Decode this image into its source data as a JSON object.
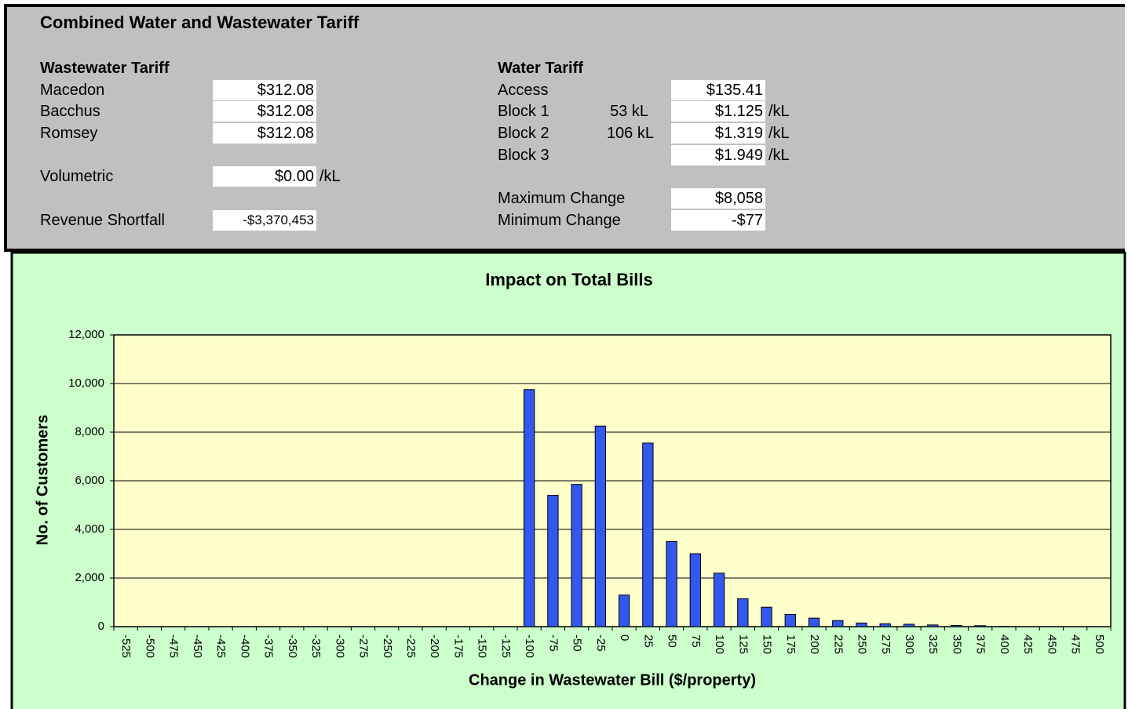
{
  "panel": {
    "title": "Combined Water and Wastewater Tariff",
    "wastewater": {
      "heading": "Wastewater Tariff",
      "rows": [
        {
          "label": "Macedon",
          "value": "$312.08"
        },
        {
          "label": "Bacchus",
          "value": "$312.08"
        },
        {
          "label": "Romsey",
          "value": "$312.08"
        },
        {
          "label": "Volumetric",
          "value": "$0.00",
          "unit": "/kL"
        },
        {
          "label": "Revenue Shortfall",
          "value": "-$3,370,453"
        }
      ]
    },
    "water": {
      "heading": "Water Tariff",
      "rows": [
        {
          "label": "Access",
          "value": "$135.41"
        },
        {
          "label": "Block 1",
          "threshold": "53 kL",
          "value": "$1.125",
          "unit": "/kL"
        },
        {
          "label": "Block 2",
          "threshold": "106 kL",
          "value": "$1.319",
          "unit": "/kL"
        },
        {
          "label": "Block 3",
          "value": "$1.949",
          "unit": "/kL"
        },
        {
          "label": "Maximum Change",
          "value": "$8,058"
        },
        {
          "label": "Minimum Change",
          "value": "-$77"
        }
      ]
    }
  },
  "chart_data": {
    "type": "bar",
    "title": "Impact on Total Bills",
    "x_label": "Change in Wastewater Bill ($/property)",
    "y_label": "No. of Customers",
    "categories": [
      -525,
      -500,
      -475,
      -450,
      -425,
      -400,
      -375,
      -350,
      -325,
      -300,
      -275,
      -250,
      -225,
      -200,
      -175,
      -150,
      -125,
      -100,
      -75,
      -50,
      -25,
      0,
      25,
      50,
      75,
      100,
      125,
      150,
      175,
      200,
      225,
      250,
      275,
      300,
      325,
      350,
      375,
      400,
      425,
      450,
      475,
      500
    ],
    "values": [
      0,
      0,
      0,
      0,
      0,
      0,
      0,
      0,
      0,
      0,
      0,
      0,
      0,
      0,
      0,
      0,
      0,
      9750,
      5400,
      5850,
      8250,
      1300,
      7550,
      3500,
      3000,
      2200,
      1150,
      800,
      500,
      350,
      250,
      150,
      120,
      100,
      70,
      50,
      40,
      10,
      0,
      0,
      0,
      0
    ],
    "color": "#3358ee",
    "ylim": [
      0,
      12000
    ],
    "yticks": [
      0,
      {
        "value": 2000,
        "label": "2,000"
      },
      {
        "value": 4000,
        "label": "4,000"
      },
      {
        "value": 6000,
        "label": "6,000"
      },
      {
        "value": 8000,
        "label": "8,000"
      },
      {
        "value": 10000,
        "label": "10,000"
      },
      {
        "value": 12000,
        "label": "12,000"
      }
    ],
    "grid": true
  }
}
